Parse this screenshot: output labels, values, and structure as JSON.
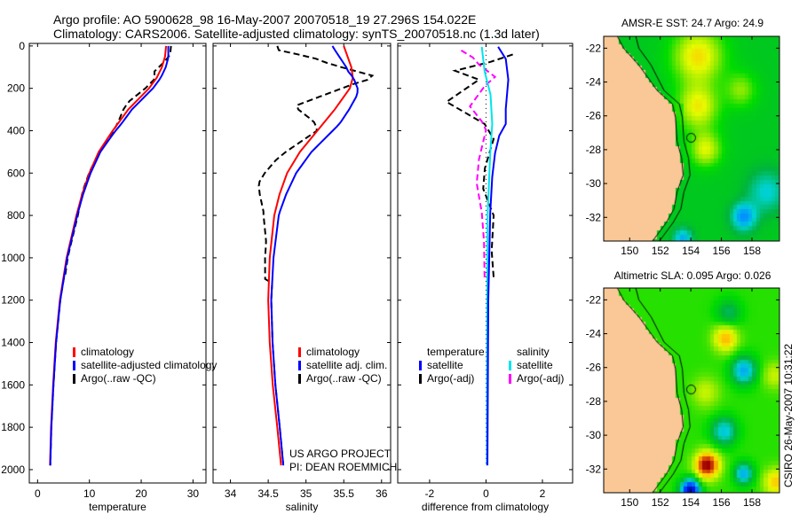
{
  "header": {
    "line1": "Argo profile: AO 5900628_98 16-May-2007 20070518_19 27.296S 154.022E",
    "line2": "Climatology: CARS2006. Satellite-adjusted climatology: synTS_20070518.nc (1.3d later)"
  },
  "credits": {
    "project": "US ARGO PROJECT",
    "pi": "PI: DEAN ROEMMICH",
    "stamp": "CSIRO 26-May-2007 10:31:22"
  },
  "colors": {
    "climatology": "#ff0000",
    "satellite": "#0000ff",
    "argo": "#000000",
    "salinity_satellite": "#00e5ee",
    "salinity_argo": "#ff00ff",
    "land": "#f9c896"
  },
  "chart_data": [
    {
      "type": "line",
      "title": "",
      "xlabel": "temperature",
      "ylabel": "",
      "xlim": [
        -1.6,
        32.5
      ],
      "ylim": [
        2063,
        -12
      ],
      "xticks": [
        0,
        10,
        20,
        30
      ],
      "xtick_labels": [
        "0",
        "10",
        "20",
        "30"
      ],
      "yticks": [
        0,
        200,
        400,
        600,
        800,
        1000,
        1200,
        1400,
        1600,
        1800,
        2000
      ],
      "ytick_labels": [
        "0",
        "200",
        "400",
        "600",
        "800",
        "1000",
        "1200",
        "1400",
        "1600",
        "1800",
        "2000"
      ],
      "depth": [
        0,
        50,
        100,
        150,
        200,
        300,
        400,
        500,
        600,
        700,
        800,
        1000,
        1200,
        1400,
        1600,
        1800,
        1980
      ],
      "climatology": [
        24.8,
        24.6,
        24.0,
        23.0,
        21.5,
        17.5,
        14.5,
        11.8,
        10.0,
        8.6,
        7.5,
        5.6,
        4.3,
        3.5,
        3.0,
        2.6,
        2.4
      ],
      "legend": [
        "climatology",
        "satellite-adjusted climatology",
        "Argo(..raw -QC)"
      ]
    },
    {
      "type": "line",
      "xlabel": "salinity",
      "xlim": [
        33.77,
        36.12
      ],
      "ylim": [
        2063,
        -12
      ],
      "xticks": [
        34,
        34.5,
        35,
        35.5,
        36
      ],
      "xtick_labels": [
        "34",
        "34.5",
        "35",
        "35.5",
        "36"
      ],
      "depth": [
        0,
        50,
        100,
        150,
        200,
        300,
        400,
        500,
        600,
        700,
        800,
        1000,
        1200,
        1400,
        1600,
        1800,
        1980
      ],
      "climatology": [
        35.5,
        35.55,
        35.6,
        35.62,
        35.58,
        35.38,
        35.15,
        34.92,
        34.75,
        34.65,
        34.58,
        34.52,
        34.5,
        34.52,
        34.56,
        34.62,
        34.67
      ],
      "legend": [
        "climatology",
        "satellite adj. clim.",
        "Argo(..raw -QC)"
      ]
    },
    {
      "type": "line",
      "xlabel": "difference from climatology",
      "xlim": [
        -3.13,
        3.07
      ],
      "ylim": [
        2063,
        -12
      ],
      "xticks": [
        -2,
        0,
        2
      ],
      "xtick_labels": [
        "-2",
        "0",
        "2"
      ],
      "legend_temperature": {
        "header": "temperature",
        "items": [
          "satellite",
          "Argo(-adj)"
        ]
      },
      "legend_salinity": {
        "header": "salinity",
        "items": [
          "satellite",
          "Argo(-adj)"
        ]
      },
      "series": [
        {
          "name": "temperature satellite",
          "depth": [
            4,
            61,
            159,
            297,
            368,
            423,
            506,
            619,
            786,
            1200,
            1980
          ],
          "values": [
            0.43,
            0.7,
            0.79,
            0.7,
            0.7,
            0.47,
            0.32,
            0.22,
            0.15,
            0.08,
            0.05
          ]
        },
        {
          "name": "temperature Argo(-adj)",
          "depth": [
            40,
            75,
            117,
            159,
            264,
            368,
            439,
            577,
            674,
            800,
            967,
            1092
          ],
          "values": [
            0.95,
            0.16,
            -1.1,
            -0.25,
            -1.4,
            -0.05,
            0.27,
            -0.04,
            -0.1,
            0.27,
            0.2,
            0.27
          ]
        },
        {
          "name": "salinity satellite",
          "depth": [
            4,
            120,
            230,
            368,
            506,
            786,
            1200,
            1980
          ],
          "values": [
            -0.15,
            -0.05,
            0.16,
            0.22,
            0.15,
            0.06,
            0.04,
            0.03
          ]
        },
        {
          "name": "salinity Argo(-adj)",
          "depth": [
            21,
            54,
            88,
            146,
            188,
            285,
            356,
            397,
            535,
            648,
            786,
            925,
            1108
          ],
          "values": [
            -0.88,
            -0.47,
            -0.25,
            0.32,
            -0.04,
            -0.57,
            -0.15,
            0.0,
            -0.25,
            -0.33,
            -0.15,
            -0.07,
            -0.05
          ]
        }
      ]
    },
    {
      "type": "heatmap",
      "title": "AMSR-E SST: 24.7 Argo: 24.9",
      "lon_range": [
        148.3,
        159.8
      ],
      "lat_range": [
        -21.3,
        -33.4
      ],
      "xticks": [
        150,
        152,
        154,
        156,
        158
      ],
      "xtick_labels": [
        "150",
        "152",
        "154",
        "156",
        "158"
      ],
      "yticks": [
        -22,
        -24,
        -26,
        -28,
        -30,
        -32
      ],
      "ytick_labels": [
        "-22",
        "-24",
        "-26",
        "-28",
        "-30",
        "-32"
      ],
      "base": 0.05,
      "features": [
        {
          "lon": 154.5,
          "lat": -22.5,
          "value": 0.55,
          "spread": 1.6
        },
        {
          "lon": 154.5,
          "lat": -25.5,
          "value": 0.5,
          "spread": 1.3
        },
        {
          "lon": 155.0,
          "lat": -28.0,
          "value": 0.45,
          "spread": 1.0
        },
        {
          "lon": 157.3,
          "lat": -24.5,
          "value": 0.3,
          "spread": 1.0
        },
        {
          "lon": 157.5,
          "lat": -32.0,
          "value": -0.6,
          "spread": 0.8
        },
        {
          "lon": 159.0,
          "lat": -30.5,
          "value": -0.35,
          "spread": 1.2
        },
        {
          "lon": 153.5,
          "lat": -33.3,
          "value": -0.5,
          "spread": 0.6
        }
      ],
      "argo_position": {
        "lon": 154.022,
        "lat": -27.296
      }
    },
    {
      "type": "heatmap",
      "title": "Altimetric SLA: 0.095 Argo: 0.026",
      "lon_range": [
        148.3,
        159.8
      ],
      "lat_range": [
        -21.3,
        -33.4
      ],
      "xticks": [
        150,
        152,
        154,
        156,
        158
      ],
      "xtick_labels": [
        "150",
        "152",
        "154",
        "156",
        "158"
      ],
      "yticks": [
        -22,
        -24,
        -26,
        -28,
        -30,
        -32
      ],
      "ytick_labels": [
        "-22",
        "-24",
        "-26",
        "-28",
        "-30",
        "-32"
      ],
      "base": 0.2,
      "features": [
        {
          "lon": 156.3,
          "lat": -24.3,
          "value": 0.55,
          "spread": 0.8
        },
        {
          "lon": 157.5,
          "lat": -26.2,
          "value": -0.6,
          "spread": 0.8
        },
        {
          "lon": 156.2,
          "lat": -29.8,
          "value": -0.5,
          "spread": 0.8
        },
        {
          "lon": 155.1,
          "lat": -31.8,
          "value": 0.9,
          "spread": 0.8
        },
        {
          "lon": 154.0,
          "lat": -33.3,
          "value": -1.4,
          "spread": 0.6
        },
        {
          "lon": 157.5,
          "lat": -32.3,
          "value": -0.6,
          "spread": 0.6
        },
        {
          "lon": 155.0,
          "lat": -27.5,
          "value": 0.3,
          "spread": 0.9
        },
        {
          "lon": 159.6,
          "lat": -32.8,
          "value": 0.5,
          "spread": 0.8
        },
        {
          "lon": 156.5,
          "lat": -22.8,
          "value": -0.25,
          "spread": 0.8
        },
        {
          "lon": 159.5,
          "lat": -26.5,
          "value": 0.3,
          "spread": 0.8
        }
      ],
      "argo_position": {
        "lon": 154.022,
        "lat": -27.296
      }
    }
  ]
}
